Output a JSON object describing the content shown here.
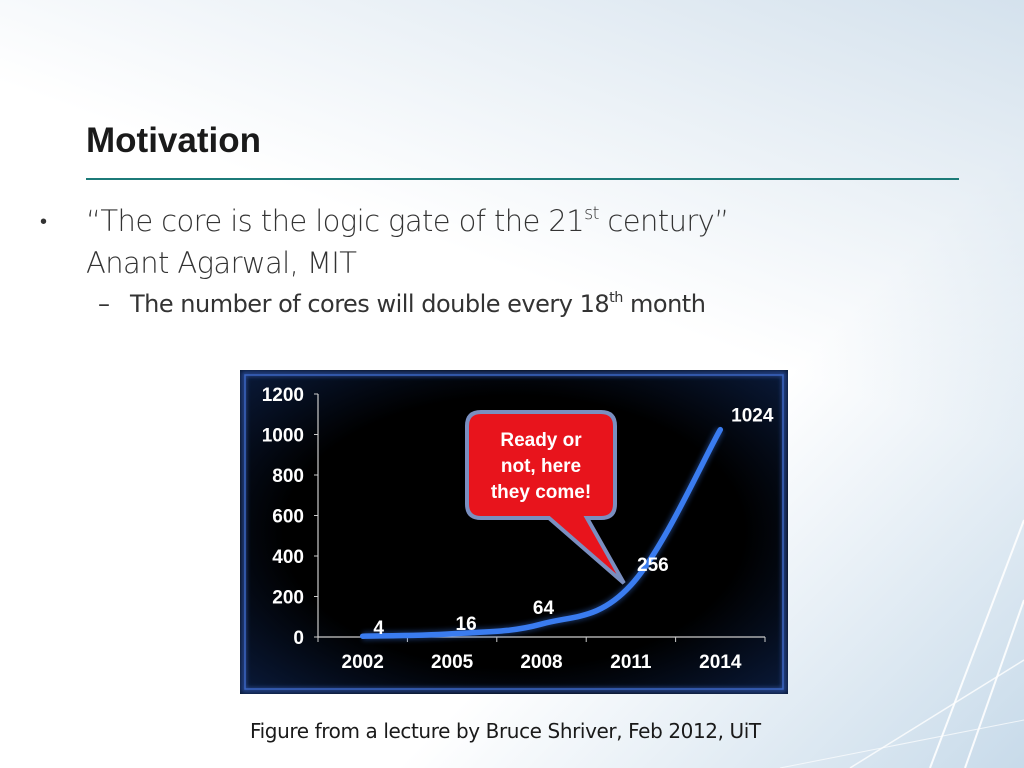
{
  "slide": {
    "title": "Motivation",
    "bullet1_line1_pre": "“The core is the logic gate of the 21",
    "bullet1_line1_sup": "st",
    "bullet1_line1_post": " century”",
    "bullet1_line2": "Anant Agarwal, MIT",
    "bullet_symbol": "•",
    "dash_symbol": "–",
    "sub1_pre": "The number of cores will double every 18",
    "sub1_sup": "th",
    "sub1_post": " month",
    "caption": "Figure from a lecture by Bruce Shriver, Feb 2012, UiT"
  },
  "colors": {
    "title_rule": "#1c7a78",
    "chart_background": "#000000",
    "chart_border": "#2a4e9a",
    "curve": "#3a7cf0",
    "callout_fill": "#e8141c",
    "callout_border": "#7a8fc0"
  },
  "chart_data": {
    "type": "line",
    "x": [
      2002,
      2005,
      2008,
      2011,
      2014
    ],
    "y_ticks": [
      0,
      200,
      400,
      600,
      800,
      1000,
      1200
    ],
    "ylim": [
      0,
      1200
    ],
    "series": [
      {
        "values": [
          4,
          16,
          64,
          256,
          1024
        ],
        "point_labels": [
          "4",
          "16",
          "64",
          "256",
          "1024"
        ]
      }
    ],
    "annotation": [
      "Ready or",
      "not, here",
      "they come!"
    ],
    "grid": false
  }
}
